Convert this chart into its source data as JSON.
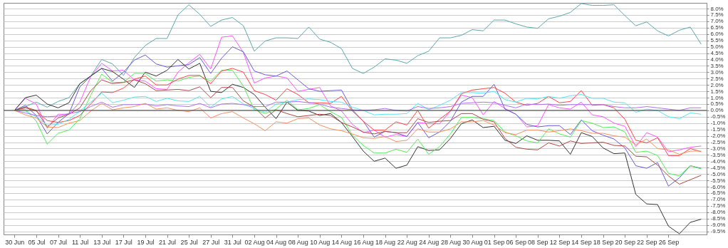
{
  "chart_data": {
    "type": "line",
    "categories": [
      "30 Jun",
      null,
      "05 Jul",
      null,
      "07 Jul",
      null,
      "11 Jul",
      null,
      "13 Jul",
      null,
      "17 Jul",
      null,
      "19 Jul",
      null,
      "21 Jul",
      null,
      "25 Jul",
      null,
      "27 Jul",
      null,
      "31 Jul",
      null,
      "02 Aug",
      null,
      "04 Aug",
      null,
      "08 Aug",
      null,
      "10 Aug",
      null,
      "14 Aug",
      null,
      "16 Aug",
      null,
      "18 Aug",
      null,
      "22 Aug",
      null,
      "24 Aug",
      null,
      "28 Aug",
      null,
      "30 Aug",
      null,
      "01 Sep",
      null,
      "06 Sep",
      null,
      "08 Sep",
      null,
      "12 Sep",
      null,
      "14 Sep",
      null,
      "18 Sep",
      null,
      "20 Sep",
      null,
      "22 Sep",
      null,
      "26 Sep",
      null,
      null,
      null
    ],
    "series": [
      {
        "color": "#5aa9b0",
        "values": [
          0,
          0.3,
          0.65,
          0.25,
          0.7,
          1.0,
          2.1,
          2.7,
          4.0,
          3.65,
          2.75,
          4.15,
          5.1,
          5.65,
          5.65,
          7.5,
          8.3,
          7.55,
          6.6,
          7.1,
          7.3,
          6.65,
          4.65,
          5.45,
          5.7,
          5.7,
          5.65,
          6.55,
          5.6,
          5.35,
          4.85,
          3.3,
          2.9,
          3.4,
          4.05,
          3.95,
          3.7,
          4.3,
          4.65,
          5.7,
          5.7,
          5.9,
          6.35,
          6.25,
          7.1,
          7.1,
          6.8,
          6.55,
          6.45,
          7.2,
          7.4,
          7.7,
          8.4,
          8.25,
          8.25,
          8.3,
          7.45,
          6.65,
          6.95,
          6.25,
          5.85,
          6.3,
          6.55,
          5.2
        ]
      },
      {
        "color": "#ff55ff",
        "values": [
          0,
          0.95,
          0.5,
          -1.4,
          -0.3,
          -0.3,
          0.65,
          2.65,
          3.7,
          3.1,
          3.15,
          2.4,
          2.3,
          1.7,
          1.65,
          3.0,
          3.75,
          4.4,
          3.25,
          5.75,
          5.85,
          4.55,
          2.15,
          2.55,
          2.7,
          2.55,
          1.5,
          1.65,
          1.8,
          0.35,
          -0.05,
          -1.1,
          -1.75,
          -1.55,
          -2.1,
          -1.9,
          -2.05,
          -0.95,
          -1.05,
          -1.05,
          -0.05,
          1.2,
          1.0,
          -0.35,
          0.7,
          0.15,
          -0.3,
          -1.3,
          -1.2,
          0.45,
          0.2,
          0.1,
          0.65,
          -0.35,
          -0.5,
          -1.0,
          -1.25,
          -2.85,
          -1.75,
          -2.1,
          -3.25,
          -3.1,
          -2.9,
          -2.8
        ]
      },
      {
        "color": "#6a5ad8",
        "values": [
          0,
          0.4,
          -0.4,
          -1.85,
          -0.95,
          -0.25,
          1.85,
          2.7,
          3.3,
          2.3,
          3.0,
          3.95,
          4.35,
          3.65,
          3.4,
          3.5,
          3.6,
          4.15,
          2.9,
          4.1,
          5.0,
          4.6,
          3.1,
          2.8,
          2.7,
          3.1,
          2.4,
          1.7,
          1.5,
          1.55,
          1.6,
          0.05,
          -0.85,
          -2.1,
          -1.65,
          -1.75,
          -2.05,
          -0.95,
          -2.15,
          -1.7,
          -0.85,
          0.65,
          1.1,
          1.1,
          2.05,
          0.1,
          -0.3,
          -1.1,
          -1.3,
          -1.2,
          -1.2,
          -1.9,
          -0.75,
          -1.6,
          -1.95,
          -2.25,
          -2.95,
          -4.35,
          -4.55,
          -4.1,
          -5.95,
          -5.3,
          -4.35,
          -4.55
        ]
      },
      {
        "color": "#333333",
        "values": [
          0,
          1.0,
          1.2,
          0.5,
          0.2,
          0.6,
          2.1,
          2.7,
          3.3,
          3.05,
          2.45,
          1.8,
          3.0,
          2.7,
          3.15,
          4.0,
          3.25,
          3.7,
          1.5,
          1.4,
          2.05,
          1.8,
          1.25,
          0.25,
          -0.65,
          0.65,
          0.0,
          -0.05,
          -0.4,
          -0.25,
          -0.95,
          -2.05,
          -3.2,
          -4.0,
          -3.75,
          -4.55,
          -4.3,
          -2.85,
          -3.15,
          -3.1,
          -2.2,
          -1.05,
          -0.75,
          -1.35,
          -1.25,
          -2.35,
          -2.6,
          -2.0,
          -2.35,
          -2.35,
          -2.4,
          -3.45,
          -1.75,
          -2.05,
          -2.95,
          -3.4,
          -3.35,
          -6.6,
          -7.35,
          -7.4,
          -9.1,
          -9.7,
          -8.8,
          -8.55
        ]
      },
      {
        "color": "#55ee55",
        "values": [
          0,
          0.1,
          -0.85,
          -2.65,
          -1.8,
          -1.55,
          -0.65,
          1.2,
          2.85,
          2.2,
          2.2,
          2.9,
          2.9,
          2.3,
          2.4,
          2.3,
          2.6,
          2.7,
          2.3,
          3.15,
          3.15,
          1.9,
          0.05,
          -0.25,
          0.1,
          0.8,
          0.05,
          0.15,
          0.45,
          -0.1,
          -0.55,
          -1.95,
          -2.75,
          -3.35,
          -3.35,
          -3.05,
          -3.3,
          -2.25,
          -3.45,
          -2.85,
          -1.85,
          -0.55,
          -0.55,
          -0.65,
          -0.8,
          -1.7,
          -2.0,
          -2.4,
          -2.55,
          -1.45,
          -1.85,
          -2.1,
          -0.8,
          -1.0,
          -1.35,
          -1.3,
          -1.7,
          -3.3,
          -3.2,
          -3.55,
          -4.95,
          -5.15,
          -4.35,
          -4.6
        ]
      },
      {
        "color": "#ff4444",
        "values": [
          0,
          0.2,
          -0.05,
          -0.8,
          -0.95,
          -0.8,
          -0.4,
          0.5,
          1.45,
          1.4,
          1.75,
          2.45,
          2.7,
          2.0,
          2.0,
          2.45,
          2.75,
          2.75,
          2.1,
          3.1,
          3.3,
          3.0,
          1.55,
          1.25,
          0.8,
          1.7,
          1.25,
          0.6,
          0.6,
          0.55,
          1.1,
          -0.05,
          -0.85,
          -1.55,
          -1.55,
          -0.9,
          -1.15,
          0.0,
          -1.4,
          -0.7,
          -0.05,
          1.3,
          1.6,
          1.7,
          1.8,
          1.35,
          0.65,
          0.4,
          0.55,
          1.1,
          0.6,
          0.7,
          1.55,
          0.4,
          0.45,
          0.2,
          -0.7,
          -2.35,
          -2.55,
          -2.15,
          -3.55,
          -3.55,
          -3.0,
          -3.25
        ]
      },
      {
        "color": "#b04848",
        "values": [
          0,
          0.25,
          0.0,
          -1.3,
          -0.6,
          -0.3,
          0.2,
          1.55,
          2.4,
          2.1,
          2.2,
          2.4,
          2.1,
          1.55,
          1.6,
          1.65,
          1.55,
          1.85,
          1.0,
          1.8,
          1.8,
          0.75,
          0.25,
          -0.6,
          0.05,
          -0.25,
          -0.5,
          -0.4,
          -0.3,
          -0.4,
          -0.95,
          -1.3,
          -1.7,
          -1.85,
          -1.65,
          -1.75,
          -1.75,
          -0.65,
          -0.95,
          -0.85,
          -0.8,
          -0.25,
          -0.25,
          -0.7,
          -0.9,
          -2.2,
          -2.9,
          -3.05,
          -3.1,
          -2.55,
          -2.8,
          -2.4,
          -2.6,
          -2.55,
          -2.5,
          -2.75,
          -2.8,
          -3.6,
          -3.65,
          -4.3,
          -5.15,
          -5.8,
          -5.45,
          -5.1
        ]
      },
      {
        "color": "#55e5f5",
        "values": [
          0,
          -0.05,
          -0.5,
          -1.15,
          -1.1,
          -0.7,
          -0.05,
          0.65,
          1.35,
          0.6,
          0.8,
          1.05,
          1.1,
          0.7,
          0.95,
          0.75,
          0.7,
          1.1,
          0.25,
          0.9,
          1.1,
          0.5,
          0.15,
          -0.15,
          0.5,
          0.65,
          0.85,
          0.9,
          0.85,
          0.7,
          0.65,
          0.25,
          0.0,
          -0.35,
          -0.3,
          -0.3,
          -0.25,
          0.55,
          0.05,
          0.4,
          0.8,
          1.4,
          1.4,
          1.35,
          1.5,
          0.85,
          0.65,
          0.95,
          0.9,
          1.1,
          0.95,
          1.15,
          1.25,
          0.95,
          0.95,
          0.65,
          0.6,
          -0.15,
          0.1,
          0.0,
          -0.5,
          -0.65,
          -0.2,
          -0.3
        ]
      },
      {
        "color": "#b070f0",
        "values": [
          0,
          -0.2,
          -0.4,
          -0.5,
          -0.45,
          -0.25,
          -0.1,
          0.3,
          0.65,
          0.25,
          0.45,
          0.45,
          0.5,
          0.35,
          0.45,
          0.35,
          0.3,
          0.55,
          0.2,
          0.5,
          0.55,
          0.45,
          0.3,
          0.3,
          0.65,
          0.65,
          0.7,
          0.6,
          0.5,
          0.25,
          0.15,
          0.05,
          0.0,
          0.05,
          0.15,
          0.0,
          -0.05,
          0.3,
          0.15,
          0.2,
          0.3,
          0.55,
          0.6,
          0.65,
          0.6,
          0.4,
          0.2,
          0.5,
          0.45,
          0.5,
          0.4,
          0.45,
          0.45,
          0.45,
          0.45,
          0.3,
          0.2,
          0.2,
          0.3,
          0.2,
          0.1,
          0.0,
          0.2,
          0.2
        ]
      },
      {
        "color": "#f59060",
        "values": [
          0,
          -0.35,
          -0.6,
          -1.3,
          -1.35,
          -1.0,
          -0.8,
          -0.05,
          0.55,
          0.05,
          0.2,
          0.3,
          0.55,
          0.1,
          0.2,
          0.0,
          -0.1,
          0.2,
          -0.6,
          -0.25,
          -0.1,
          -0.6,
          -1.05,
          -1.6,
          -0.9,
          -1.0,
          -0.65,
          -0.6,
          -1.15,
          -1.45,
          -1.6,
          -1.85,
          -2.15,
          -2.2,
          -2.05,
          -2.45,
          -2.35,
          -1.45,
          -1.7,
          -1.7,
          -1.45,
          -0.9,
          -0.9,
          -0.8,
          -1.15,
          -1.75,
          -1.9,
          -1.55,
          -1.55,
          -1.7,
          -1.6,
          -1.45,
          -1.6,
          -1.8,
          -1.8,
          -2.0,
          -2.1,
          -2.7,
          -2.25,
          -3.0,
          -3.1,
          -3.45,
          -3.2,
          -3.2
        ]
      }
    ],
    "ylim": [
      -9.75,
      8.45
    ],
    "yticks": [
      {
        "value": 8,
        "label": "8.0%"
      },
      {
        "value": 7.5,
        "label": "7.5%"
      },
      {
        "value": 7,
        "label": "7.0%"
      },
      {
        "value": 6.5,
        "label": "6.5%"
      },
      {
        "value": 6,
        "label": "6.0%"
      },
      {
        "value": 5.5,
        "label": "5.5%"
      },
      {
        "value": 5,
        "label": "5.0%"
      },
      {
        "value": 4.5,
        "label": "4.5%"
      },
      {
        "value": 4,
        "label": "4.0%"
      },
      {
        "value": 3.5,
        "label": "3.5%"
      },
      {
        "value": 3,
        "label": "3.0%"
      },
      {
        "value": 2.5,
        "label": "2.5%"
      },
      {
        "value": 2,
        "label": "2.0%"
      },
      {
        "value": 1.5,
        "label": "1.5%"
      },
      {
        "value": 1,
        "label": "1.0%"
      },
      {
        "value": 0.5,
        "label": "0.5%"
      },
      {
        "value": 0,
        "label": "0.0%"
      },
      {
        "value": -0.5,
        "label": "-0.5%"
      },
      {
        "value": -1,
        "label": "-1.0%"
      },
      {
        "value": -1.5,
        "label": "-1.5%"
      },
      {
        "value": -2,
        "label": "-2.0%"
      },
      {
        "value": -2.5,
        "label": "-2.5%"
      },
      {
        "value": -3,
        "label": "-3.0%"
      },
      {
        "value": -3.5,
        "label": "-3.5%"
      },
      {
        "value": -4,
        "label": "-4.0%"
      },
      {
        "value": -4.5,
        "label": "-4.5%"
      },
      {
        "value": -5,
        "label": "-5.0%"
      },
      {
        "value": -5.5,
        "label": "-5.5%"
      },
      {
        "value": -6,
        "label": "-6.0%"
      },
      {
        "value": -6.5,
        "label": "-6.5%"
      },
      {
        "value": -7,
        "label": "-7.0%"
      },
      {
        "value": -7.5,
        "label": "-7.5%"
      },
      {
        "value": -8,
        "label": "-8.0%"
      },
      {
        "value": -8.5,
        "label": "-8.5%"
      },
      {
        "value": -9,
        "label": "-9.0%"
      },
      {
        "value": -9.5,
        "label": "-9.5%"
      }
    ],
    "grid": "y",
    "ref_lines": [
      {
        "axis": "y",
        "value": 0,
        "color": "#444444"
      }
    ],
    "marker": "none",
    "line_style": "solid"
  }
}
